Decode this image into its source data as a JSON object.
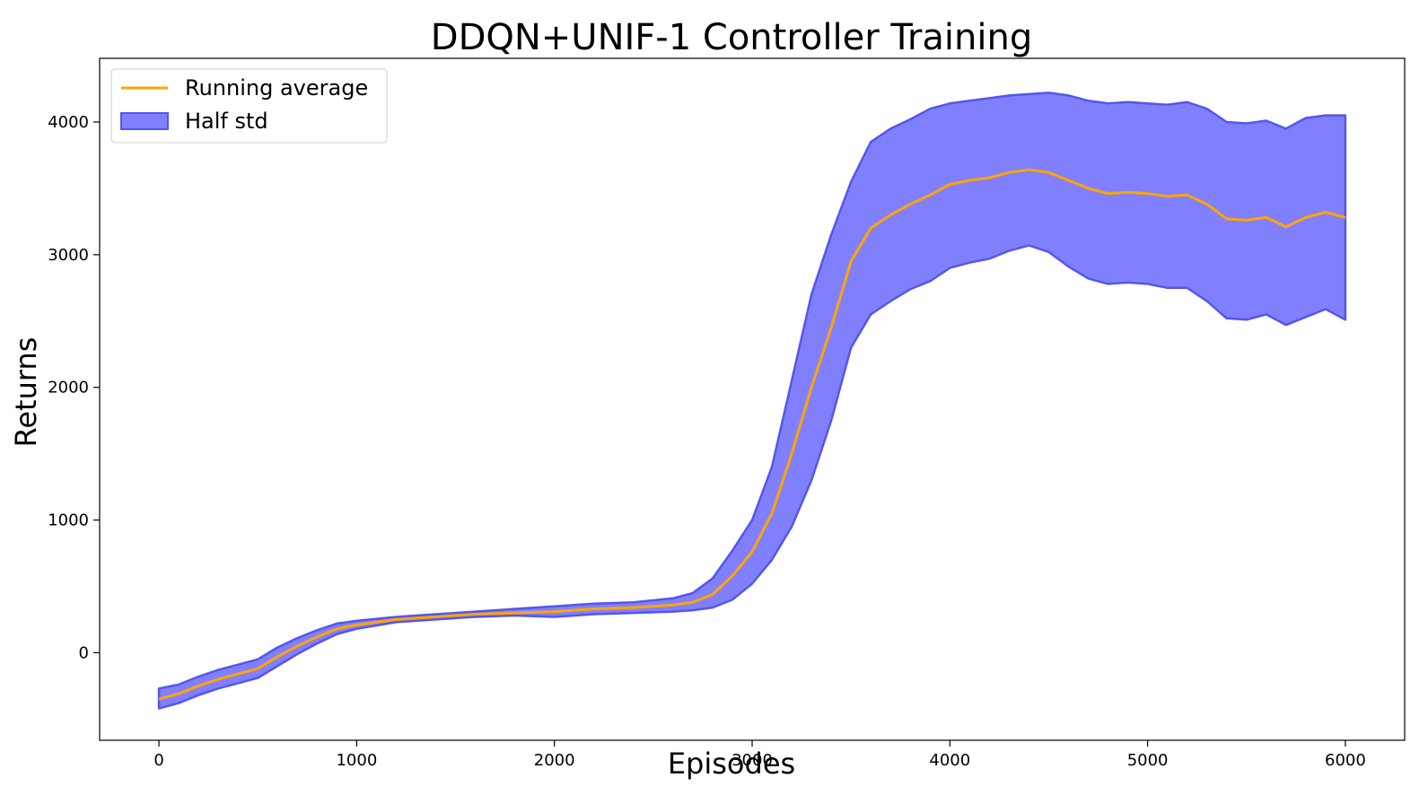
{
  "chart_data": {
    "type": "line",
    "title": "DDQN+UNIF-1 Controller Training",
    "xlabel": "Episodes",
    "ylabel": "Returns",
    "xlim": [
      -300,
      6300
    ],
    "ylim": [
      -660,
      4480
    ],
    "xticks": [
      0,
      1000,
      2000,
      3000,
      4000,
      5000,
      6000
    ],
    "yticks": [
      0,
      1000,
      2000,
      3000,
      4000
    ],
    "grid": false,
    "legend_position": "top-left",
    "colors": {
      "line": "#ffa500",
      "band_fill": "#8080ff",
      "band_edge": "#5555ee"
    },
    "series": [
      {
        "name": "Running average",
        "x": [
          0,
          100,
          200,
          300,
          400,
          500,
          600,
          700,
          800,
          900,
          1000,
          1200,
          1400,
          1600,
          1800,
          2000,
          2200,
          2400,
          2600,
          2700,
          2800,
          2900,
          3000,
          3100,
          3200,
          3300,
          3400,
          3500,
          3600,
          3700,
          3800,
          3900,
          4000,
          4100,
          4200,
          4300,
          4400,
          4500,
          4600,
          4700,
          4800,
          4900,
          5000,
          5100,
          5200,
          5300,
          5400,
          5500,
          5600,
          5700,
          5800,
          5900,
          6000
        ],
        "values": [
          -350,
          -310,
          -250,
          -200,
          -160,
          -120,
          -30,
          50,
          120,
          180,
          210,
          250,
          270,
          290,
          300,
          310,
          330,
          340,
          360,
          380,
          440,
          580,
          760,
          1050,
          1500,
          2000,
          2450,
          2950,
          3200,
          3300,
          3380,
          3450,
          3530,
          3560,
          3580,
          3620,
          3640,
          3620,
          3560,
          3500,
          3460,
          3470,
          3460,
          3440,
          3450,
          3380,
          3270,
          3260,
          3280,
          3210,
          3280,
          3320,
          3280
        ]
      },
      {
        "name": "Half std",
        "x": [
          0,
          100,
          200,
          300,
          400,
          500,
          600,
          700,
          800,
          900,
          1000,
          1200,
          1400,
          1600,
          1800,
          2000,
          2200,
          2400,
          2600,
          2700,
          2800,
          2900,
          3000,
          3100,
          3200,
          3300,
          3400,
          3500,
          3600,
          3700,
          3800,
          3900,
          4000,
          4100,
          4200,
          4300,
          4400,
          4500,
          4600,
          4700,
          4800,
          4900,
          5000,
          5100,
          5200,
          5300,
          5400,
          5500,
          5600,
          5700,
          5800,
          5900,
          6000
        ],
        "upper": [
          -270,
          -240,
          -180,
          -130,
          -90,
          -50,
          40,
          110,
          170,
          220,
          240,
          270,
          290,
          310,
          330,
          350,
          370,
          380,
          410,
          450,
          560,
          770,
          1000,
          1400,
          2050,
          2700,
          3150,
          3550,
          3850,
          3950,
          4020,
          4100,
          4140,
          4160,
          4180,
          4200,
          4210,
          4220,
          4200,
          4160,
          4140,
          4150,
          4140,
          4130,
          4150,
          4100,
          4000,
          3990,
          4010,
          3950,
          4030,
          4050,
          4050
        ],
        "lower": [
          -420,
          -380,
          -320,
          -270,
          -230,
          -190,
          -100,
          -10,
          70,
          140,
          180,
          230,
          250,
          270,
          280,
          270,
          290,
          300,
          310,
          320,
          340,
          400,
          520,
          700,
          950,
          1300,
          1750,
          2300,
          2550,
          2650,
          2740,
          2800,
          2900,
          2940,
          2970,
          3030,
          3070,
          3020,
          2910,
          2820,
          2780,
          2790,
          2780,
          2750,
          2750,
          2650,
          2520,
          2510,
          2550,
          2470,
          2530,
          2590,
          2510
        ]
      }
    ]
  }
}
